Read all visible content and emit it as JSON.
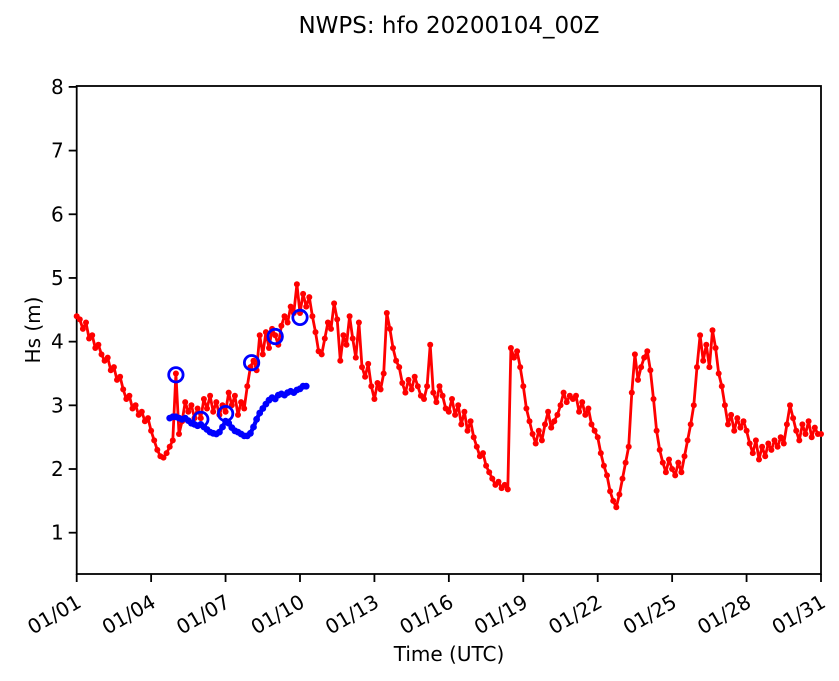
{
  "figure": {
    "background": "#ffffff",
    "frame_color": "#000000"
  },
  "chart_data": {
    "type": "line",
    "title": "NWPS: hfo 20200104_00Z",
    "xlabel": "Time (UTC)",
    "ylabel": "Hs (m)",
    "grid": false,
    "legend_position": "none",
    "xlim_days": [
      1,
      31
    ],
    "ylim": [
      0.35,
      8.01
    ],
    "y_ticks": [
      1,
      2,
      3,
      4,
      5,
      6,
      7,
      8
    ],
    "x_tick_days": [
      1,
      4,
      7,
      10,
      13,
      16,
      19,
      22,
      25,
      28,
      31
    ],
    "x_tick_labels": [
      "01/01",
      "01/04",
      "01/07",
      "01/10",
      "01/13",
      "01/16",
      "01/19",
      "01/22",
      "01/25",
      "01/28",
      "01/31"
    ],
    "x_tick_rotation_deg": 30,
    "series": [
      {
        "name": "observed-hs",
        "color": "#ff0000",
        "style": "line-with-dot-markers",
        "start_day": 1.0,
        "step_days": 0.125,
        "values": [
          4.4,
          4.35,
          4.2,
          4.3,
          4.05,
          4.1,
          3.9,
          3.95,
          3.8,
          3.7,
          3.75,
          3.55,
          3.6,
          3.4,
          3.45,
          3.25,
          3.1,
          3.15,
          2.95,
          3.0,
          2.85,
          2.9,
          2.75,
          2.8,
          2.6,
          2.45,
          2.3,
          2.2,
          2.18,
          2.25,
          2.35,
          2.45,
          3.5,
          2.55,
          2.75,
          3.05,
          2.9,
          3.0,
          2.8,
          2.95,
          2.8,
          3.1,
          2.95,
          3.15,
          2.9,
          3.05,
          2.85,
          3.0,
          2.9,
          3.2,
          3.0,
          3.15,
          2.85,
          3.05,
          2.95,
          3.3,
          3.6,
          3.7,
          3.55,
          4.1,
          3.8,
          4.15,
          3.9,
          4.2,
          4.1,
          3.95,
          4.25,
          4.4,
          4.3,
          4.55,
          4.45,
          4.9,
          4.45,
          4.75,
          4.55,
          4.7,
          4.4,
          4.15,
          3.85,
          3.8,
          4.05,
          4.3,
          4.2,
          4.6,
          4.35,
          3.7,
          4.1,
          3.95,
          4.4,
          4.05,
          3.75,
          4.3,
          3.6,
          3.45,
          3.65,
          3.3,
          3.1,
          3.35,
          3.25,
          3.5,
          4.45,
          4.2,
          3.9,
          3.7,
          3.6,
          3.35,
          3.2,
          3.4,
          3.25,
          3.45,
          3.3,
          3.15,
          3.1,
          3.3,
          3.95,
          3.2,
          3.05,
          3.3,
          3.15,
          2.95,
          2.9,
          3.1,
          2.85,
          3.0,
          2.7,
          2.9,
          2.6,
          2.75,
          2.5,
          2.35,
          2.2,
          2.25,
          2.05,
          1.95,
          1.85,
          1.75,
          1.8,
          1.7,
          1.75,
          1.68,
          3.9,
          3.75,
          3.85,
          3.6,
          3.3,
          2.95,
          2.75,
          2.55,
          2.4,
          2.6,
          2.45,
          2.7,
          2.9,
          2.65,
          2.75,
          2.85,
          3.0,
          3.2,
          3.05,
          3.15,
          3.1,
          3.15,
          2.9,
          3.05,
          2.85,
          2.95,
          2.7,
          2.6,
          2.5,
          2.25,
          2.05,
          1.9,
          1.65,
          1.5,
          1.4,
          1.6,
          1.85,
          2.1,
          2.35,
          3.2,
          3.8,
          3.4,
          3.6,
          3.75,
          3.85,
          3.55,
          3.1,
          2.6,
          2.3,
          2.1,
          1.95,
          2.15,
          2.0,
          1.9,
          2.1,
          1.95,
          2.2,
          2.45,
          2.7,
          3.0,
          3.6,
          4.1,
          3.7,
          3.95,
          3.6,
          4.18,
          3.9,
          3.5,
          3.3,
          3.0,
          2.7,
          2.85,
          2.6,
          2.8,
          2.65,
          2.75,
          2.6,
          2.4,
          2.25,
          2.45,
          2.15,
          2.35,
          2.2,
          2.4,
          2.3,
          2.45,
          2.35,
          2.5,
          2.4,
          2.7,
          3.0,
          2.8,
          2.6,
          2.45,
          2.7,
          2.55,
          2.75,
          2.5,
          2.65,
          2.55,
          2.55
        ]
      },
      {
        "name": "forecast-hs-line",
        "color": "#0000ff",
        "style": "thick-line-with-dot-markers",
        "start_day": 4.75,
        "step_days": 0.125,
        "values": [
          2.8,
          2.82,
          2.82,
          2.8,
          2.78,
          2.8,
          2.76,
          2.72,
          2.7,
          2.68,
          2.7,
          2.66,
          2.62,
          2.58,
          2.56,
          2.55,
          2.58,
          2.66,
          2.75,
          2.72,
          2.65,
          2.6,
          2.58,
          2.55,
          2.52,
          2.52,
          2.56,
          2.66,
          2.78,
          2.88,
          2.95,
          3.02,
          3.08,
          3.12,
          3.1,
          3.16,
          3.18,
          3.16,
          3.2,
          3.22,
          3.2,
          3.24,
          3.26,
          3.3,
          3.3
        ]
      },
      {
        "name": "daily-open-circle-markers",
        "color": "#0000ff",
        "style": "open-circle-markers",
        "points": [
          [
            5.0,
            3.48
          ],
          [
            6.0,
            2.78
          ],
          [
            7.0,
            2.87
          ],
          [
            8.05,
            3.67
          ],
          [
            9.0,
            4.08
          ],
          [
            10.0,
            4.38
          ]
        ]
      }
    ]
  }
}
